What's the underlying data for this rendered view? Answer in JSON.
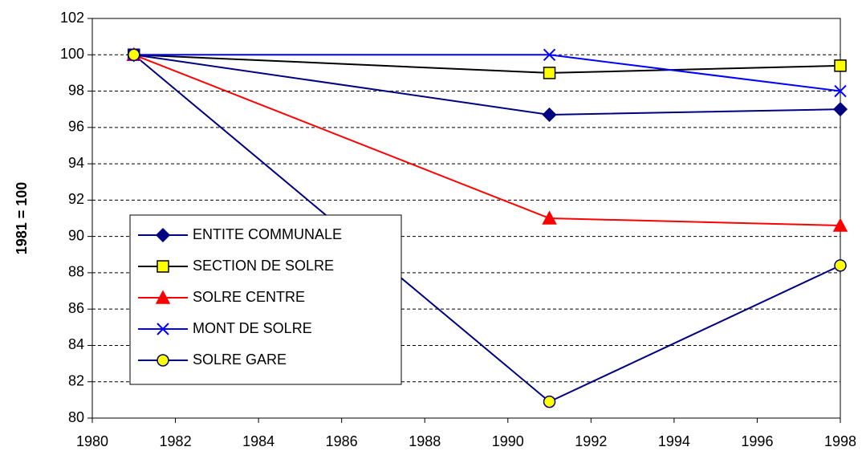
{
  "chart_data": {
    "type": "line",
    "ylabel": "1981 = 100",
    "x": [
      1981,
      1991,
      1998
    ],
    "series": [
      {
        "name": "ENTITE COMMUNALE",
        "color": "#000080",
        "marker": "diamond",
        "marker_fill": "#000080",
        "values": [
          100,
          96.7,
          97.0
        ]
      },
      {
        "name": "SECTION DE SOLRE",
        "color": "#000000",
        "marker": "square",
        "marker_fill": "#ffff00",
        "values": [
          100,
          99.0,
          99.4
        ]
      },
      {
        "name": "SOLRE CENTRE",
        "color": "#ff0000",
        "marker": "triangle",
        "marker_fill": "#ff0000",
        "values": [
          100,
          91.0,
          90.6
        ]
      },
      {
        "name": "MONT DE SOLRE",
        "color": "#0000ff",
        "marker": "cross",
        "marker_fill": "#0000ff",
        "values": [
          100,
          100,
          98.0
        ]
      },
      {
        "name": "SOLRE GARE",
        "color": "#000080",
        "marker": "circle",
        "marker_fill": "#ffff00",
        "values": [
          100,
          80.9,
          88.4
        ]
      }
    ],
    "xlim": [
      1980,
      1998
    ],
    "xticks": [
      1980,
      1982,
      1984,
      1986,
      1988,
      1990,
      1992,
      1994,
      1996,
      1998
    ],
    "ylim": [
      80,
      102
    ],
    "yticks": [
      80,
      82,
      84,
      86,
      88,
      90,
      92,
      94,
      96,
      98,
      100,
      102
    ],
    "grid": true
  }
}
